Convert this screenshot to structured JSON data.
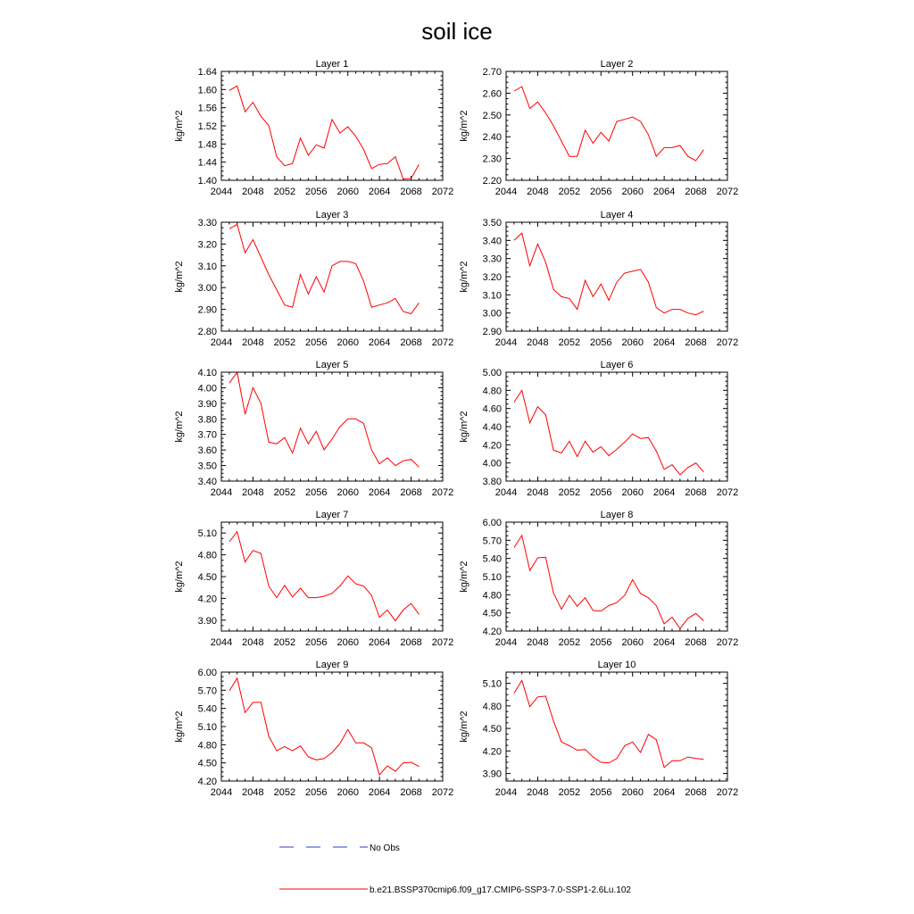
{
  "figure": {
    "title": "soil ice",
    "legend": {
      "obs_label": "No Obs",
      "obs_color": "#2b3fc4",
      "model_label": "b.e21.BSSP370cmip6.f09_g17.CMIP6-SSP3-7.0-SSP1-2.6Lu.102",
      "model_color": "#ff0000"
    }
  },
  "chart_data": [
    {
      "type": "line",
      "title": "Layer 1",
      "ylabel": "kg/m^2",
      "xlabel": "",
      "xlim": [
        2044,
        2072
      ],
      "ylim": [
        1.4,
        1.64
      ],
      "xticks": [
        "2044",
        "2048",
        "2052",
        "2056",
        "2060",
        "2064",
        "2068",
        "2072"
      ],
      "yticks": [
        "1.40",
        "1.44",
        "1.48",
        "1.52",
        "1.56",
        "1.60",
        "1.64"
      ],
      "x": [
        2045,
        2046,
        2047,
        2048,
        2049,
        2050,
        2051,
        2052,
        2053,
        2054,
        2055,
        2056,
        2057,
        2058,
        2059,
        2060,
        2061,
        2062,
        2063,
        2064,
        2065,
        2066,
        2067,
        2068,
        2069
      ],
      "values": [
        1.598,
        1.608,
        1.551,
        1.572,
        1.541,
        1.521,
        1.452,
        1.432,
        1.437,
        1.493,
        1.455,
        1.478,
        1.471,
        1.534,
        1.504,
        1.518,
        1.497,
        1.468,
        1.426,
        1.435,
        1.437,
        1.452,
        1.403,
        1.404,
        1.435
      ]
    },
    {
      "type": "line",
      "title": "Layer 2",
      "ylabel": "kg/m^2",
      "xlabel": "",
      "xlim": [
        2044,
        2072
      ],
      "ylim": [
        2.2,
        2.7
      ],
      "xticks": [
        "2044",
        "2048",
        "2052",
        "2056",
        "2060",
        "2064",
        "2068",
        "2072"
      ],
      "yticks": [
        "2.20",
        "2.30",
        "2.40",
        "2.50",
        "2.60",
        "2.70"
      ],
      "x": [
        2045,
        2046,
        2047,
        2048,
        2049,
        2050,
        2051,
        2052,
        2053,
        2054,
        2055,
        2056,
        2057,
        2058,
        2059,
        2060,
        2061,
        2062,
        2063,
        2064,
        2065,
        2066,
        2067,
        2068,
        2069
      ],
      "values": [
        2.61,
        2.63,
        2.53,
        2.56,
        2.51,
        2.45,
        2.38,
        2.31,
        2.31,
        2.43,
        2.37,
        2.42,
        2.38,
        2.47,
        2.48,
        2.49,
        2.47,
        2.41,
        2.31,
        2.35,
        2.35,
        2.36,
        2.31,
        2.29,
        2.34
      ]
    },
    {
      "type": "line",
      "title": "Layer 3",
      "ylabel": "kg/m^2",
      "xlabel": "",
      "xlim": [
        2044,
        2072
      ],
      "ylim": [
        2.8,
        3.3
      ],
      "xticks": [
        "2044",
        "2048",
        "2052",
        "2056",
        "2060",
        "2064",
        "2068",
        "2072"
      ],
      "yticks": [
        "2.80",
        "2.90",
        "3.00",
        "3.10",
        "3.20",
        "3.30"
      ],
      "x": [
        2045,
        2046,
        2047,
        2048,
        2049,
        2050,
        2051,
        2052,
        2053,
        2054,
        2055,
        2056,
        2057,
        2058,
        2059,
        2060,
        2061,
        2062,
        2063,
        2064,
        2065,
        2066,
        2067,
        2068,
        2069
      ],
      "values": [
        3.27,
        3.29,
        3.16,
        3.22,
        3.14,
        3.06,
        2.99,
        2.92,
        2.91,
        3.06,
        2.97,
        3.05,
        2.98,
        3.1,
        3.12,
        3.12,
        3.11,
        3.03,
        2.91,
        2.92,
        2.93,
        2.95,
        2.89,
        2.88,
        2.93
      ]
    },
    {
      "type": "line",
      "title": "Layer 4",
      "ylabel": "kg/m^2",
      "xlabel": "",
      "xlim": [
        2044,
        2072
      ],
      "ylim": [
        2.9,
        3.5
      ],
      "xticks": [
        "2044",
        "2048",
        "2052",
        "2056",
        "2060",
        "2064",
        "2068",
        "2072"
      ],
      "yticks": [
        "2.90",
        "3.00",
        "3.10",
        "3.20",
        "3.30",
        "3.40",
        "3.50"
      ],
      "x": [
        2045,
        2046,
        2047,
        2048,
        2049,
        2050,
        2051,
        2052,
        2053,
        2054,
        2055,
        2056,
        2057,
        2058,
        2059,
        2060,
        2061,
        2062,
        2063,
        2064,
        2065,
        2066,
        2067,
        2068,
        2069
      ],
      "values": [
        3.4,
        3.44,
        3.26,
        3.38,
        3.28,
        3.13,
        3.09,
        3.08,
        3.02,
        3.18,
        3.09,
        3.16,
        3.07,
        3.17,
        3.22,
        3.23,
        3.24,
        3.17,
        3.03,
        3.0,
        3.02,
        3.02,
        3.0,
        2.99,
        3.01
      ]
    },
    {
      "type": "line",
      "title": "Layer 5",
      "ylabel": "kg/m^2",
      "xlabel": "",
      "xlim": [
        2044,
        2072
      ],
      "ylim": [
        3.4,
        4.1
      ],
      "xticks": [
        "2044",
        "2048",
        "2052",
        "2056",
        "2060",
        "2064",
        "2068",
        "2072"
      ],
      "yticks": [
        "3.40",
        "3.50",
        "3.60",
        "3.70",
        "3.80",
        "3.90",
        "4.00",
        "4.10"
      ],
      "x": [
        2045,
        2046,
        2047,
        2048,
        2049,
        2050,
        2051,
        2052,
        2053,
        2054,
        2055,
        2056,
        2057,
        2058,
        2059,
        2060,
        2061,
        2062,
        2063,
        2064,
        2065,
        2066,
        2067,
        2068,
        2069
      ],
      "values": [
        4.03,
        4.1,
        3.83,
        4.0,
        3.9,
        3.65,
        3.64,
        3.68,
        3.58,
        3.74,
        3.64,
        3.72,
        3.6,
        3.67,
        3.75,
        3.8,
        3.8,
        3.77,
        3.6,
        3.51,
        3.55,
        3.5,
        3.53,
        3.54,
        3.49
      ]
    },
    {
      "type": "line",
      "title": "Layer 6",
      "ylabel": "kg/m^2",
      "xlabel": "",
      "xlim": [
        2044,
        2072
      ],
      "ylim": [
        3.8,
        5.0
      ],
      "xticks": [
        "2044",
        "2048",
        "2052",
        "2056",
        "2060",
        "2064",
        "2068",
        "2072"
      ],
      "yticks": [
        "3.80",
        "4.00",
        "4.20",
        "4.40",
        "4.60",
        "4.80",
        "5.00"
      ],
      "x": [
        2045,
        2046,
        2047,
        2048,
        2049,
        2050,
        2051,
        2052,
        2053,
        2054,
        2055,
        2056,
        2057,
        2058,
        2059,
        2060,
        2061,
        2062,
        2063,
        2064,
        2065,
        2066,
        2067,
        2068,
        2069
      ],
      "values": [
        4.67,
        4.8,
        4.44,
        4.62,
        4.53,
        4.14,
        4.11,
        4.24,
        4.07,
        4.24,
        4.12,
        4.18,
        4.08,
        4.15,
        4.23,
        4.32,
        4.27,
        4.28,
        4.13,
        3.93,
        3.98,
        3.87,
        3.95,
        4.0,
        3.9
      ]
    },
    {
      "type": "line",
      "title": "Layer 7",
      "ylabel": "kg/m^2",
      "xlabel": "",
      "xlim": [
        2044,
        2072
      ],
      "ylim": [
        3.75,
        5.25
      ],
      "xticks": [
        "2044",
        "2048",
        "2052",
        "2056",
        "2060",
        "2064",
        "2068",
        "2072"
      ],
      "yticks": [
        "3.90",
        "4.20",
        "4.50",
        "4.80",
        "5.10"
      ],
      "x": [
        2045,
        2046,
        2047,
        2048,
        2049,
        2050,
        2051,
        2052,
        2053,
        2054,
        2055,
        2056,
        2057,
        2058,
        2059,
        2060,
        2061,
        2062,
        2063,
        2064,
        2065,
        2066,
        2067,
        2068,
        2069
      ],
      "values": [
        4.98,
        5.12,
        4.7,
        4.86,
        4.82,
        4.37,
        4.21,
        4.38,
        4.22,
        4.34,
        4.21,
        4.21,
        4.23,
        4.27,
        4.37,
        4.51,
        4.4,
        4.37,
        4.24,
        3.94,
        4.04,
        3.89,
        4.04,
        4.13,
        3.98
      ]
    },
    {
      "type": "line",
      "title": "Layer 8",
      "ylabel": "kg/m^2",
      "xlabel": "",
      "xlim": [
        2044,
        2072
      ],
      "ylim": [
        4.2,
        6.0
      ],
      "xticks": [
        "2044",
        "2048",
        "2052",
        "2056",
        "2060",
        "2064",
        "2068",
        "2072"
      ],
      "yticks": [
        "4.20",
        "4.50",
        "4.80",
        "5.10",
        "5.40",
        "5.70",
        "6.00"
      ],
      "x": [
        2045,
        2046,
        2047,
        2048,
        2049,
        2050,
        2051,
        2052,
        2053,
        2054,
        2055,
        2056,
        2057,
        2058,
        2059,
        2060,
        2061,
        2062,
        2063,
        2064,
        2065,
        2066,
        2067,
        2068,
        2069
      ],
      "values": [
        5.58,
        5.78,
        5.2,
        5.41,
        5.42,
        4.83,
        4.56,
        4.79,
        4.61,
        4.75,
        4.54,
        4.53,
        4.62,
        4.67,
        4.79,
        5.05,
        4.82,
        4.75,
        4.62,
        4.32,
        4.43,
        4.24,
        4.41,
        4.49,
        4.37
      ]
    },
    {
      "type": "line",
      "title": "Layer 9",
      "ylabel": "kg/m^2",
      "xlabel": "",
      "xlim": [
        2044,
        2072
      ],
      "ylim": [
        4.2,
        6.0
      ],
      "xticks": [
        "2044",
        "2048",
        "2052",
        "2056",
        "2060",
        "2064",
        "2068",
        "2072"
      ],
      "yticks": [
        "4.20",
        "4.50",
        "4.80",
        "5.10",
        "5.40",
        "5.70",
        "6.00"
      ],
      "x": [
        2045,
        2046,
        2047,
        2048,
        2049,
        2050,
        2051,
        2052,
        2053,
        2054,
        2055,
        2056,
        2057,
        2058,
        2059,
        2060,
        2061,
        2062,
        2063,
        2064,
        2065,
        2066,
        2067,
        2068,
        2069
      ],
      "values": [
        5.69,
        5.9,
        5.33,
        5.5,
        5.5,
        4.94,
        4.7,
        4.77,
        4.7,
        4.78,
        4.6,
        4.55,
        4.57,
        4.67,
        4.82,
        5.05,
        4.83,
        4.83,
        4.75,
        4.3,
        4.45,
        4.36,
        4.5,
        4.51,
        4.44
      ]
    },
    {
      "type": "line",
      "title": "Layer 10",
      "ylabel": "kg/m^2",
      "xlabel": "",
      "xlim": [
        2044,
        2072
      ],
      "ylim": [
        3.8,
        5.25
      ],
      "xticks": [
        "2044",
        "2048",
        "2052",
        "2056",
        "2060",
        "2064",
        "2068",
        "2072"
      ],
      "yticks": [
        "3.90",
        "4.20",
        "4.50",
        "4.80",
        "5.10"
      ],
      "x": [
        2045,
        2046,
        2047,
        2048,
        2049,
        2050,
        2051,
        2052,
        2053,
        2054,
        2055,
        2056,
        2057,
        2058,
        2059,
        2060,
        2061,
        2062,
        2063,
        2064,
        2065,
        2066,
        2067,
        2068,
        2069
      ],
      "values": [
        4.97,
        5.14,
        4.79,
        4.92,
        4.93,
        4.6,
        4.32,
        4.27,
        4.21,
        4.22,
        4.12,
        4.05,
        4.04,
        4.1,
        4.27,
        4.32,
        4.18,
        4.42,
        4.35,
        3.98,
        4.07,
        4.07,
        4.12,
        4.1,
        4.09
      ]
    }
  ]
}
